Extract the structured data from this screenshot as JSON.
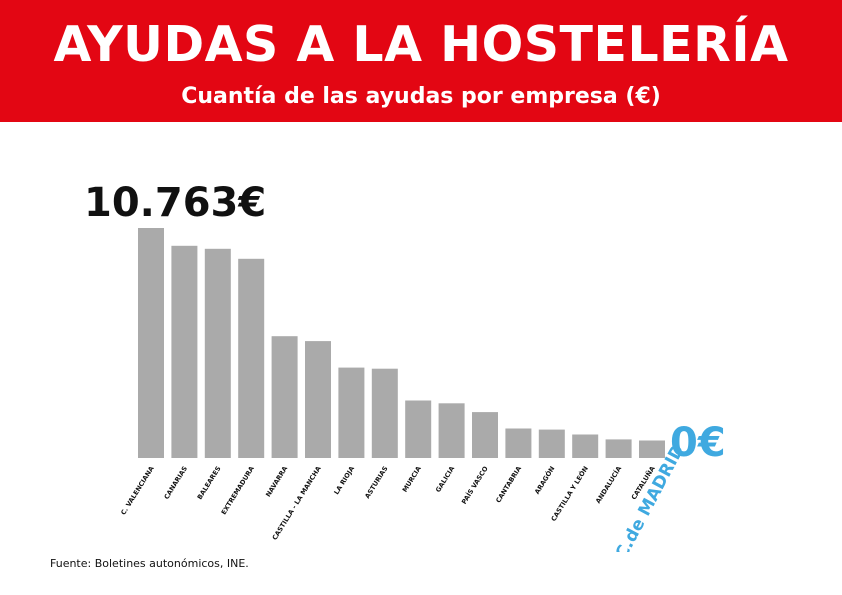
{
  "header": {
    "title": "AYUDAS A LA HOSTELERÍA",
    "subtitle": "Cuantía de las ayudas por empresa (€)"
  },
  "colors": {
    "header_bg": "#e30613",
    "bar": "#aaaaaa",
    "highlight": "#3fa9e0",
    "text": "#111111"
  },
  "chart_data": {
    "type": "bar",
    "unit": "€",
    "categories": [
      "C. VALENCIANA",
      "CANARIAS",
      "BALEARES",
      "EXTREMADURA",
      "NAVARRA",
      "CASTILLA - LA MANCHA",
      "LA RIOJA",
      "ASTURIAS",
      "MURCIA",
      "GALICIA",
      "PAÍS VASCO",
      "CANTABRIA",
      "ARAGÓN",
      "CASTILLA Y LEÓN",
      "ANDALUCÍA",
      "CATALUÑA"
    ],
    "values": [
      10763,
      9930,
      9790,
      9320,
      5700,
      5470,
      4230,
      4180,
      2690,
      2560,
      2150,
      1380,
      1330,
      1100,
      870,
      820
    ],
    "max_label": "10.763€",
    "highlight": {
      "category": "C.de MADRID",
      "value": 0,
      "value_label": "0€"
    },
    "ylim": [
      0,
      10763
    ]
  },
  "footer": {
    "source": "Fuente: Boletines autonómicos, INE."
  }
}
